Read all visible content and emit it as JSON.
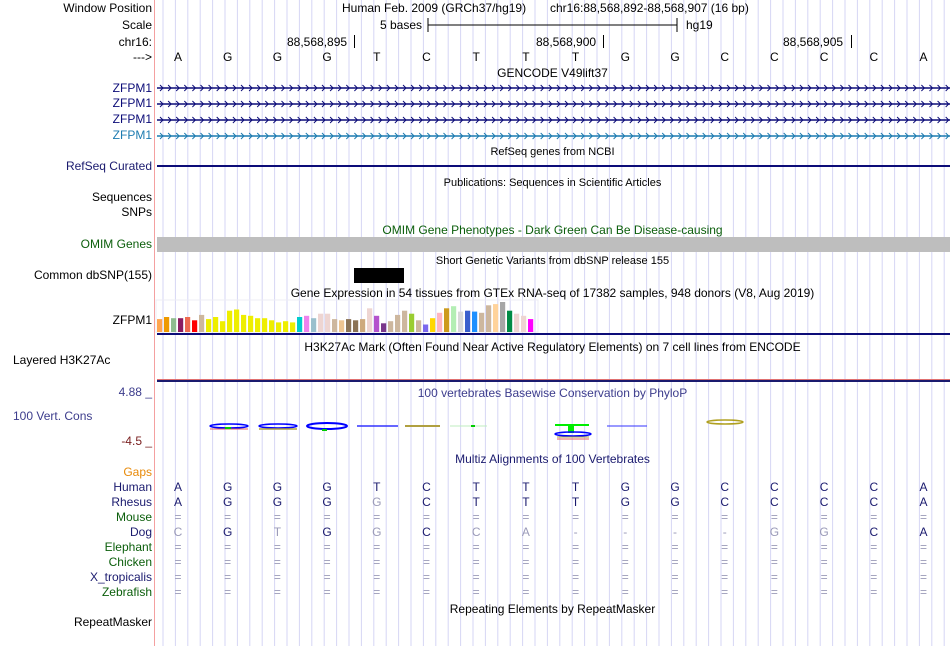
{
  "header": {
    "window_position_label": "Window Position",
    "scale_label": "Scale",
    "chrom_label": "chr16:",
    "strand_label": "--->",
    "assembly": "Human Feb. 2009 (GRCh37/hg19)",
    "position": "chr16:88,568,892-88,568,907 (16 bp)",
    "scale_text": "5 bases",
    "scale_db": "hg19",
    "ticks": [
      "88,568,895",
      "88,568,900",
      "88,568,905"
    ]
  },
  "sequence": [
    "A",
    "G",
    "G",
    "G",
    "T",
    "C",
    "T",
    "T",
    "T",
    "G",
    "G",
    "C",
    "C",
    "C",
    "C",
    "A"
  ],
  "tracks": {
    "gencode": {
      "title": "GENCODE V49lift37",
      "genes": [
        {
          "name": "ZFPM1",
          "color": "#0c0c78"
        },
        {
          "name": "ZFPM1",
          "color": "#0c0c78"
        },
        {
          "name": "ZFPM1",
          "color": "#0c0c78"
        },
        {
          "name": "ZFPM1",
          "color": "#1c7bb0"
        }
      ]
    },
    "refseq": {
      "label": "RefSeq Curated",
      "title": "RefSeq genes from NCBI"
    },
    "publications": {
      "title": "Publications: Sequences in Scientific Articles",
      "labels": [
        "Sequences",
        "SNPs"
      ]
    },
    "omim": {
      "label": "OMIM Genes",
      "title": "OMIM Gene Phenotypes - Dark Green Can Be Disease-causing",
      "bar_color": "#bebebe"
    },
    "dbsnp": {
      "label": "Common dbSNP(155)",
      "title": "Short Genetic Variants from dbSNP release 155"
    },
    "gtex": {
      "label": "ZFPM1",
      "title": "Gene Expression in 54 tissues from GTEx RNA-seq of 17382 samples, 948 donors (V8, Aug 2019)",
      "bars": [
        {
          "color": "#ffa54f",
          "value": 0.43
        },
        {
          "color": "#ee9a00",
          "value": 0.5
        },
        {
          "color": "#8fbc8f",
          "value": 0.46
        },
        {
          "color": "#8b1c62",
          "value": 0.46
        },
        {
          "color": "#ee6a50",
          "value": 0.5
        },
        {
          "color": "#ff0000",
          "value": 0.39
        },
        {
          "color": "#cdb79e",
          "value": 0.57
        },
        {
          "color": "#eeee00",
          "value": 0.43
        },
        {
          "color": "#eeee00",
          "value": 0.5
        },
        {
          "color": "#eeee00",
          "value": 0.36
        },
        {
          "color": "#eeee00",
          "value": 0.71
        },
        {
          "color": "#eeee00",
          "value": 0.75
        },
        {
          "color": "#eeee00",
          "value": 0.57
        },
        {
          "color": "#eeee00",
          "value": 0.54
        },
        {
          "color": "#eeee00",
          "value": 0.46
        },
        {
          "color": "#eeee00",
          "value": 0.46
        },
        {
          "color": "#eeee00",
          "value": 0.39
        },
        {
          "color": "#eeee00",
          "value": 0.32
        },
        {
          "color": "#eeee00",
          "value": 0.36
        },
        {
          "color": "#eeee00",
          "value": 0.32
        },
        {
          "color": "#00cdcd",
          "value": 0.5
        },
        {
          "color": "#ee82ee",
          "value": 0.54
        },
        {
          "color": "#9ac0cd",
          "value": 0.46
        },
        {
          "color": "#eed5d2",
          "value": 0.61
        },
        {
          "color": "#eed5d2",
          "value": 0.61
        },
        {
          "color": "#cdb79e",
          "value": 0.43
        },
        {
          "color": "#eec591",
          "value": 0.39
        },
        {
          "color": "#8b7355",
          "value": 0.43
        },
        {
          "color": "#8b7355",
          "value": 0.39
        },
        {
          "color": "#cdaa7d",
          "value": 0.43
        },
        {
          "color": "#eed5d2",
          "value": 0.79
        },
        {
          "color": "#b452cd",
          "value": 0.54
        },
        {
          "color": "#7a378b",
          "value": 0.29
        },
        {
          "color": "#cdb79e",
          "value": 0.36
        },
        {
          "color": "#cdb79e",
          "value": 0.57
        },
        {
          "color": "#cdb79e",
          "value": 0.71
        },
        {
          "color": "#9acd32",
          "value": 0.61
        },
        {
          "color": "#cdb79e",
          "value": 0.39
        },
        {
          "color": "#7b68ee",
          "value": 0.25
        },
        {
          "color": "#ffd700",
          "value": 0.46
        },
        {
          "color": "#ffb6c1",
          "value": 0.64
        },
        {
          "color": "#cd9b1d",
          "value": 0.79
        },
        {
          "color": "#b4eeb4",
          "value": 0.86
        },
        {
          "color": "#d9d9d9",
          "value": 0.68
        },
        {
          "color": "#3a5fcd",
          "value": 0.71
        },
        {
          "color": "#1e90ff",
          "value": 0.68
        },
        {
          "color": "#cdb79e",
          "value": 0.64
        },
        {
          "color": "#cdb79e",
          "value": 0.89
        },
        {
          "color": "#ffd39b",
          "value": 0.93
        },
        {
          "color": "#a6a6a6",
          "value": 1.0
        },
        {
          "color": "#008b45",
          "value": 0.71
        },
        {
          "color": "#eed5d2",
          "value": 0.61
        },
        {
          "color": "#eed5d2",
          "value": 0.54
        },
        {
          "color": "#ff00ff",
          "value": 0.43
        }
      ]
    },
    "h3k27ac": {
      "label": "Layered H3K27Ac",
      "title": "H3K27Ac Mark (Often Found Near Active Regulatory Elements) on 7 cell lines from ENCODE"
    },
    "phylop": {
      "label": "100 Vert. Cons",
      "title": "100 vertebrates Basewise Conservation by PhyloP",
      "max": "4.88 _",
      "min": "-4.5 _"
    },
    "multiz": {
      "title": "Multiz Alignments of 100 Vertebrates",
      "gaps_label": "Gaps",
      "species": [
        {
          "name": "Human",
          "color": "#1a1a6e",
          "bases": [
            "A",
            "G",
            "G",
            "G",
            "T",
            "C",
            "T",
            "T",
            "T",
            "G",
            "G",
            "C",
            "C",
            "C",
            "C",
            "A"
          ],
          "faint": []
        },
        {
          "name": "Rhesus",
          "color": "#1a1a6e",
          "bases": [
            "A",
            "G",
            "G",
            "G",
            "G",
            "C",
            "T",
            "T",
            "T",
            "G",
            "G",
            "C",
            "C",
            "C",
            "C",
            "A"
          ],
          "faint": [
            4
          ]
        },
        {
          "name": "Mouse",
          "color": "#0b5e0b",
          "bases": [
            "=",
            "=",
            "=",
            "=",
            "=",
            "=",
            "=",
            "=",
            "=",
            "=",
            "=",
            "=",
            "=",
            "=",
            "=",
            "="
          ],
          "faint": "all"
        },
        {
          "name": "Dog",
          "color": "#1a1a6e",
          "bases": [
            "C",
            "G",
            "T",
            "G",
            "G",
            "C",
            "C",
            "A",
            "-",
            "-",
            "-",
            "-",
            "G",
            "G",
            "C",
            "A"
          ],
          "faint": [
            0,
            2,
            4,
            6,
            7,
            8,
            9,
            10,
            11,
            12,
            13
          ]
        },
        {
          "name": "Elephant",
          "color": "#0b5e0b",
          "bases": [
            "=",
            "=",
            "=",
            "=",
            "=",
            "=",
            "=",
            "=",
            "=",
            "=",
            "=",
            "=",
            "=",
            "=",
            "=",
            "="
          ],
          "faint": "all"
        },
        {
          "name": "Chicken",
          "color": "#0b5e0b",
          "bases": [
            "=",
            "=",
            "=",
            "=",
            "=",
            "=",
            "=",
            "=",
            "=",
            "=",
            "=",
            "=",
            "=",
            "=",
            "=",
            "="
          ],
          "faint": "all"
        },
        {
          "name": "X_tropicalis",
          "color": "#1a1a6e",
          "bases": [
            "=",
            "=",
            "=",
            "=",
            "=",
            "=",
            "=",
            "=",
            "=",
            "=",
            "=",
            "=",
            "=",
            "=",
            "=",
            "="
          ],
          "faint": "all"
        },
        {
          "name": "Zebrafish",
          "color": "#0b5e0b",
          "bases": [
            "=",
            "=",
            "=",
            "=",
            "=",
            "=",
            "=",
            "=",
            "=",
            "=",
            "=",
            "=",
            "=",
            "=",
            "=",
            "="
          ],
          "faint": "all"
        }
      ]
    },
    "repeatmasker": {
      "label": "RepeatMasker",
      "title": "Repeating Elements by RepeatMasker"
    }
  }
}
